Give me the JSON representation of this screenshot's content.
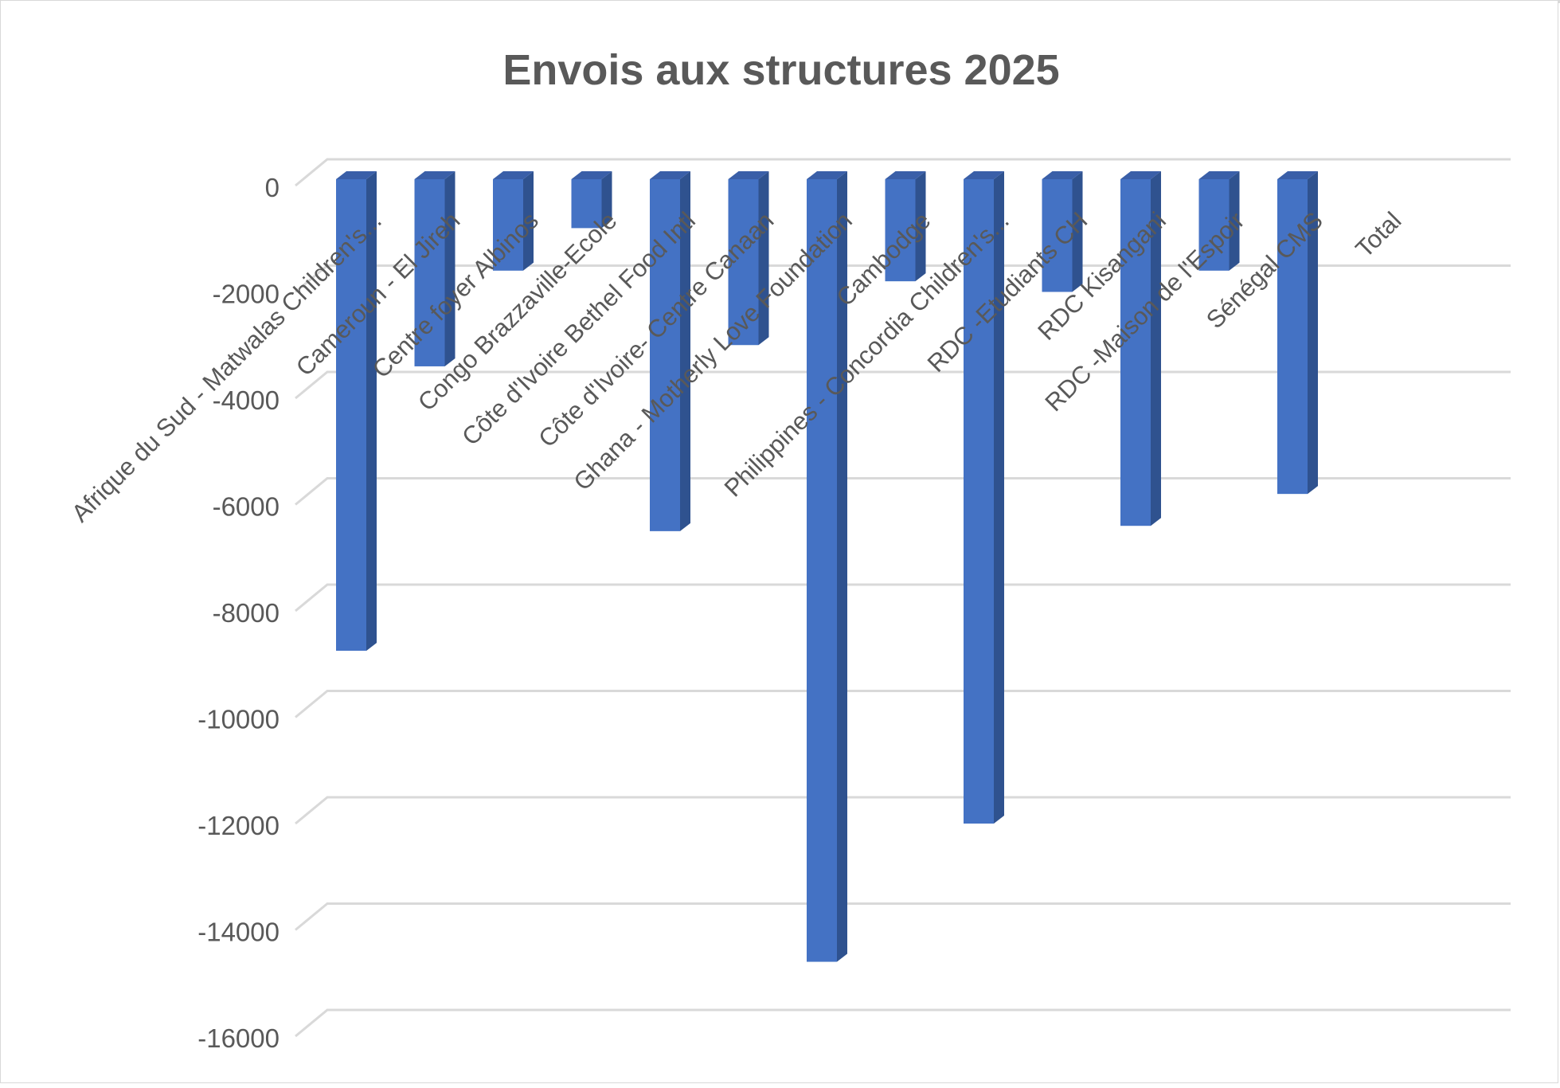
{
  "chart_data": {
    "type": "bar",
    "title": "Envois aux structures 2025",
    "xlabel": "",
    "ylabel": "",
    "ylim": [
      -16000,
      0
    ],
    "yticks": [
      0,
      -2000,
      -4000,
      -6000,
      -8000,
      -10000,
      -12000,
      -14000,
      -16000
    ],
    "grid": true,
    "legend": "none",
    "three_d": true,
    "bar_color": "#4472C4",
    "bar_side_color": "#2F528F",
    "bar_top_color": "#3A5FA8",
    "grid_color": "#D9D9D9",
    "text_color": "#595959",
    "categories": [
      "Afrique du Sud - Matwalas Children's...",
      "Cameroun - El Jireh",
      "Centre foyer Albinos",
      "Congo Brazzaville-Ecole",
      "Côte d'Ivoire Bethel Food Intl",
      "Côte d'Ivoire- Centre Canaan",
      "Ghana - Motherly Love Foundation",
      "Cambodge",
      "Philippines - Concordia Children's...",
      "RDC -Etudiants CH",
      "RDC Kisangani",
      "RDC -Maison de l'Espoir",
      "Sénégal CMS",
      "Total"
    ],
    "values": [
      -8750,
      -3400,
      -1600,
      -800,
      -6500,
      -3000,
      -14600,
      -1800,
      -12000,
      -2000,
      -6400,
      -1600,
      -5800,
      null
    ]
  }
}
